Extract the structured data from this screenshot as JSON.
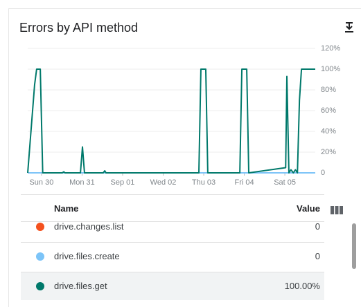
{
  "chart_data": {
    "type": "line",
    "title": "Errors by API method",
    "x": [
      -0.34,
      -0.17,
      -0.12,
      -0.03,
      0.03,
      0.51,
      0.55,
      0.58,
      0.96,
      1.01,
      1.06,
      1.52,
      1.56,
      1.59,
      3.88,
      3.93,
      4.05,
      4.1,
      4.89,
      4.94,
      5.06,
      5.11,
      6.02,
      6.05,
      6.1,
      6.15,
      6.21,
      6.26,
      6.31,
      6.36,
      6.41,
      6.75
    ],
    "xlim": [
      -0.34,
      6.75
    ],
    "xticks": [
      {
        "value": 0,
        "label": "Sun 30"
      },
      {
        "value": 1,
        "label": "Mon 31"
      },
      {
        "value": 2,
        "label": "Sep 01"
      },
      {
        "value": 3,
        "label": "Wed 02"
      },
      {
        "value": 4,
        "label": "Thu 03"
      },
      {
        "value": 5,
        "label": "Fri 04"
      },
      {
        "value": 6,
        "label": "Sat 05"
      }
    ],
    "ylim": [
      0,
      120
    ],
    "yticks": [
      0,
      {
        "value": 20,
        "label": "20%"
      },
      {
        "value": 40,
        "label": "40%"
      },
      {
        "value": 60,
        "label": "60%"
      },
      {
        "value": 80,
        "label": "80%"
      },
      {
        "value": 100,
        "label": "100%"
      },
      {
        "value": 120,
        "label": "120%"
      }
    ],
    "grid": true,
    "legend_headers": {
      "name": "Name",
      "value": "Value"
    },
    "series": [
      {
        "name": "drive.changes.list",
        "color": "#f4511e",
        "current": "0",
        "values": [
          0,
          0,
          0,
          0,
          0,
          0,
          0,
          0,
          0,
          0,
          0,
          0,
          0,
          0,
          0,
          0,
          0,
          0,
          0,
          0,
          0,
          0,
          0,
          0,
          0,
          0,
          0,
          0,
          0,
          0,
          0,
          0
        ]
      },
      {
        "name": "drive.files.create",
        "color": "#7cc4f8",
        "current": "0",
        "values": [
          0,
          0,
          0,
          0,
          0,
          0,
          0,
          0,
          0,
          0,
          0,
          0,
          0,
          0,
          0,
          0,
          0,
          0,
          0,
          0,
          0,
          0,
          0,
          0,
          0,
          0,
          0,
          0,
          0,
          0,
          0,
          0
        ]
      },
      {
        "name": "drive.files.get",
        "color": "#00796b",
        "current": "100.00%",
        "values": [
          0,
          85,
          100,
          100,
          0,
          0,
          1,
          0,
          0,
          25,
          0,
          0,
          2,
          0,
          0,
          100,
          100,
          0,
          0,
          100,
          100,
          0,
          5,
          93,
          0,
          3,
          0,
          3,
          0,
          70,
          100,
          100
        ]
      }
    ]
  }
}
